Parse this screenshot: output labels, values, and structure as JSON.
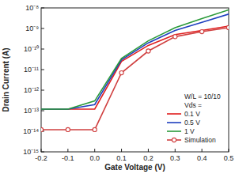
{
  "chart_data": {
    "type": "line",
    "x_label": "Gate Voltage (V)",
    "y_label": "Drain Current (A)",
    "x": [
      -0.2,
      -0.1,
      0.0,
      0.1,
      0.2,
      0.3,
      0.4,
      0.5
    ],
    "xlim": [
      -0.2,
      0.5
    ],
    "xticks": [
      -0.2,
      -0.1,
      {
        "value": 0,
        "label": "0.0"
      },
      0.1,
      0.2,
      0.3,
      0.4,
      0.5
    ],
    "ylim": [
      1e-15,
      1e-08
    ],
    "yticks": [
      {
        "value": 1e-15,
        "label": "10⁻¹⁵"
      },
      {
        "value": 1e-14,
        "label": "10⁻¹⁴"
      },
      {
        "value": 1e-13,
        "label": "10⁻¹³"
      },
      {
        "value": 1e-12,
        "label": "10⁻¹²"
      },
      {
        "value": 1e-11,
        "label": "10⁻¹¹"
      },
      {
        "value": 1e-10,
        "label": "10⁻¹⁰"
      },
      {
        "value": 1e-09,
        "label": "10⁻⁹"
      },
      {
        "value": 1e-08,
        "label": "10⁻⁸"
      }
    ],
    "log": "y",
    "grid": false,
    "legend": "lower right",
    "annotations": [
      "W/L = 10/10",
      "Vds ="
    ],
    "series": [
      {
        "name": "0.1 V",
        "color": "#e02020",
        "marker": "none",
        "line_style": "solid",
        "values": [
          1.2e-13,
          1.2e-13,
          1.2e-13,
          2.5e-11,
          1.5e-10,
          5e-10,
          8e-10,
          1.3e-09
        ]
      },
      {
        "name": "0.5 V",
        "color": "#1f3fbf",
        "marker": "none",
        "line_style": "solid",
        "values": [
          1.2e-13,
          1.2e-13,
          2e-13,
          3e-11,
          2e-10,
          8e-10,
          2e-09,
          5e-09
        ]
      },
      {
        "name": "1 V",
        "color": "#2a9a3a",
        "marker": "none",
        "line_style": "solid",
        "values": [
          1.2e-13,
          1.2e-13,
          3e-13,
          3.5e-11,
          2.5e-10,
          1.1e-09,
          3e-09,
          8e-09
        ]
      },
      {
        "name": "Simulation",
        "color": "#d04040",
        "marker": "circle",
        "line_style": "solid",
        "values": [
          1.2e-14,
          1.2e-14,
          1.2e-14,
          7e-12,
          8e-11,
          4e-10,
          7e-10,
          1.1e-09
        ]
      }
    ]
  }
}
